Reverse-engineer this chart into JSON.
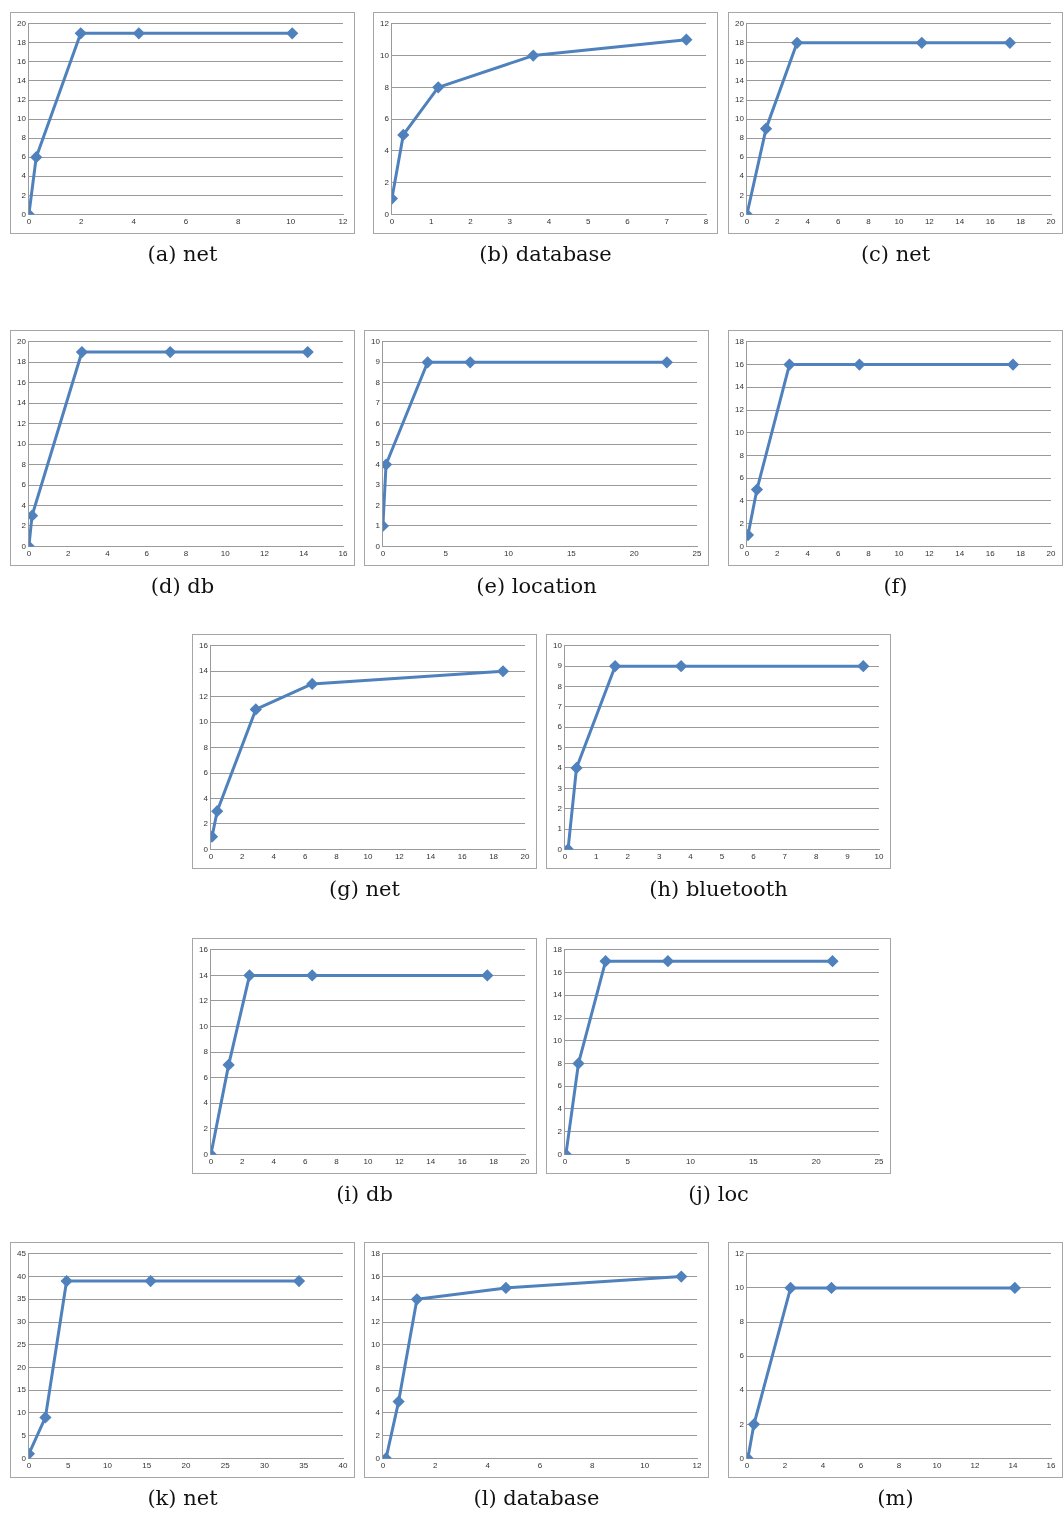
{
  "chart_data": [
    {
      "type": "line",
      "title": "(a) net",
      "x": [
        0,
        0.28,
        1.98,
        4.2,
        10.06
      ],
      "values": [
        0,
        6,
        19,
        19,
        19
      ],
      "color": "#4f81bd",
      "xlim": [
        0,
        12
      ],
      "xticks": [
        0,
        2,
        4,
        6,
        8,
        10,
        12
      ],
      "ylim": [
        0,
        20
      ],
      "yticks": [
        0,
        2,
        4,
        6,
        8,
        10,
        12,
        14,
        16,
        18,
        20
      ],
      "grid": "y",
      "marker": "diamond"
    },
    {
      "type": "line",
      "title": "(b) database",
      "x": [
        0,
        0.29,
        1.18,
        3.6,
        7.5
      ],
      "values": [
        1,
        5,
        8,
        10,
        11
      ],
      "color": "#4f81bd",
      "xlim": [
        0,
        8
      ],
      "xticks": [
        0,
        1,
        2,
        3,
        4,
        5,
        6,
        7,
        8
      ],
      "ylim": [
        0,
        12
      ],
      "yticks": [
        0,
        2,
        4,
        6,
        8,
        10,
        12
      ],
      "grid": "y",
      "marker": "diamond"
    },
    {
      "type": "line",
      "title": "(c) net",
      "x": [
        0,
        1.26,
        3.3,
        11.5,
        17.3
      ],
      "values": [
        0,
        9,
        18,
        18,
        18
      ],
      "color": "#4f81bd",
      "xlim": [
        0,
        20
      ],
      "xticks": [
        0,
        2,
        4,
        6,
        8,
        10,
        12,
        14,
        16,
        18,
        20
      ],
      "ylim": [
        0,
        20
      ],
      "yticks": [
        0,
        2,
        4,
        6,
        8,
        10,
        12,
        14,
        16,
        18,
        20
      ],
      "grid": "y",
      "marker": "diamond"
    },
    {
      "type": "line",
      "title": "(d) db",
      "x": [
        0,
        0.16,
        2.7,
        7.2,
        14.2
      ],
      "values": [
        0,
        3,
        19,
        19,
        19
      ],
      "color": "#4f81bd",
      "xlim": [
        0,
        16
      ],
      "xticks": [
        0,
        2,
        4,
        6,
        8,
        10,
        12,
        14,
        16
      ],
      "ylim": [
        0,
        20
      ],
      "yticks": [
        0,
        2,
        4,
        6,
        8,
        10,
        12,
        14,
        16,
        18,
        20
      ],
      "grid": "y",
      "marker": "diamond"
    },
    {
      "type": "line",
      "title": "(e) location",
      "x": [
        0,
        0.25,
        3.56,
        6.95,
        22.6
      ],
      "values": [
        1,
        4,
        9,
        9,
        9
      ],
      "color": "#4f81bd",
      "xlim": [
        0,
        25
      ],
      "xticks": [
        0,
        5,
        10,
        15,
        20,
        25
      ],
      "ylim": [
        0,
        10
      ],
      "yticks": [
        0,
        1,
        2,
        3,
        4,
        5,
        6,
        7,
        8,
        9,
        10
      ],
      "grid": "y",
      "marker": "diamond"
    },
    {
      "type": "line",
      "title": "(f)",
      "x": [
        0.07,
        0.66,
        2.8,
        7.4,
        17.5
      ],
      "values": [
        1,
        5,
        16,
        16,
        16
      ],
      "color": "#4f81bd",
      "xlim": [
        0,
        20
      ],
      "xticks": [
        0,
        2,
        4,
        6,
        8,
        10,
        12,
        14,
        16,
        18,
        20
      ],
      "ylim": [
        0,
        18
      ],
      "yticks": [
        0,
        2,
        4,
        6,
        8,
        10,
        12,
        14,
        16,
        18
      ],
      "grid": "y",
      "marker": "diamond"
    },
    {
      "type": "line",
      "title": "(g) net",
      "x": [
        0.07,
        0.4,
        2.86,
        6.45,
        18.6
      ],
      "values": [
        1,
        3,
        11,
        13,
        14
      ],
      "color": "#4f81bd",
      "xlim": [
        0,
        20
      ],
      "xticks": [
        0,
        2,
        4,
        6,
        8,
        10,
        12,
        14,
        16,
        18,
        20
      ],
      "ylim": [
        0,
        16
      ],
      "yticks": [
        0,
        2,
        4,
        6,
        8,
        10,
        12,
        14,
        16
      ],
      "grid": "y",
      "marker": "diamond"
    },
    {
      "type": "line",
      "title": "(h) bluetooth",
      "x": [
        0.1,
        0.37,
        1.6,
        3.7,
        9.5
      ],
      "values": [
        0,
        4,
        9,
        9,
        9
      ],
      "color": "#4f81bd",
      "xlim": [
        0,
        10
      ],
      "xticks": [
        0,
        1,
        2,
        3,
        4,
        5,
        6,
        7,
        8,
        9,
        10
      ],
      "ylim": [
        0,
        10
      ],
      "yticks": [
        0,
        1,
        2,
        3,
        4,
        5,
        6,
        7,
        8,
        9,
        10
      ],
      "grid": "y",
      "marker": "diamond"
    },
    {
      "type": "line",
      "title": "(i) db",
      "x": [
        0,
        1.13,
        2.46,
        6.45,
        17.6
      ],
      "values": [
        0,
        7,
        14,
        14,
        14
      ],
      "color": "#4f81bd",
      "xlim": [
        0,
        20
      ],
      "xticks": [
        0,
        2,
        4,
        6,
        8,
        10,
        12,
        14,
        16,
        18,
        20
      ],
      "ylim": [
        0,
        16
      ],
      "yticks": [
        0,
        2,
        4,
        6,
        8,
        10,
        12,
        14,
        16
      ],
      "grid": "y",
      "marker": "diamond"
    },
    {
      "type": "line",
      "title": "(j) loc",
      "x": [
        0.08,
        1.08,
        3.24,
        8.2,
        21.3
      ],
      "values": [
        0,
        8,
        17,
        17,
        17
      ],
      "color": "#4f81bd",
      "xlim": [
        0,
        25
      ],
      "xticks": [
        0,
        5,
        10,
        15,
        20,
        25
      ],
      "ylim": [
        0,
        18
      ],
      "yticks": [
        0,
        2,
        4,
        6,
        8,
        10,
        12,
        14,
        16,
        18
      ],
      "grid": "y",
      "marker": "diamond"
    },
    {
      "type": "line",
      "title": "(k) net",
      "x": [
        0,
        2.1,
        4.8,
        15.5,
        34.4
      ],
      "values": [
        1,
        9,
        39,
        39,
        39
      ],
      "color": "#4f81bd",
      "xlim": [
        0,
        40
      ],
      "xticks": [
        0,
        5,
        10,
        15,
        20,
        25,
        30,
        35,
        40
      ],
      "ylim": [
        0,
        45
      ],
      "yticks": [
        0,
        5,
        10,
        15,
        20,
        25,
        30,
        35,
        40,
        45
      ],
      "grid": "y",
      "marker": "diamond"
    },
    {
      "type": "line",
      "title": "(l) database",
      "x": [
        0.12,
        0.6,
        1.3,
        4.7,
        11.4
      ],
      "values": [
        0,
        5,
        14,
        15,
        16
      ],
      "color": "#4f81bd",
      "xlim": [
        0,
        12
      ],
      "xticks": [
        0,
        2,
        4,
        6,
        8,
        10,
        12
      ],
      "ylim": [
        0,
        18
      ],
      "yticks": [
        0,
        2,
        4,
        6,
        8,
        10,
        12,
        14,
        16,
        18
      ],
      "grid": "y",
      "marker": "diamond"
    },
    {
      "type": "line",
      "title": "(m)",
      "x": [
        0.05,
        0.37,
        2.3,
        4.45,
        14.1
      ],
      "values": [
        0,
        2,
        10,
        10,
        10
      ],
      "color": "#4f81bd",
      "xlim": [
        0,
        16
      ],
      "xticks": [
        0,
        2,
        4,
        6,
        8,
        10,
        12,
        14,
        16
      ],
      "ylim": [
        0,
        12
      ],
      "yticks": [
        0,
        2,
        4,
        6,
        8,
        10,
        12
      ],
      "grid": "y",
      "marker": "diamond"
    }
  ]
}
